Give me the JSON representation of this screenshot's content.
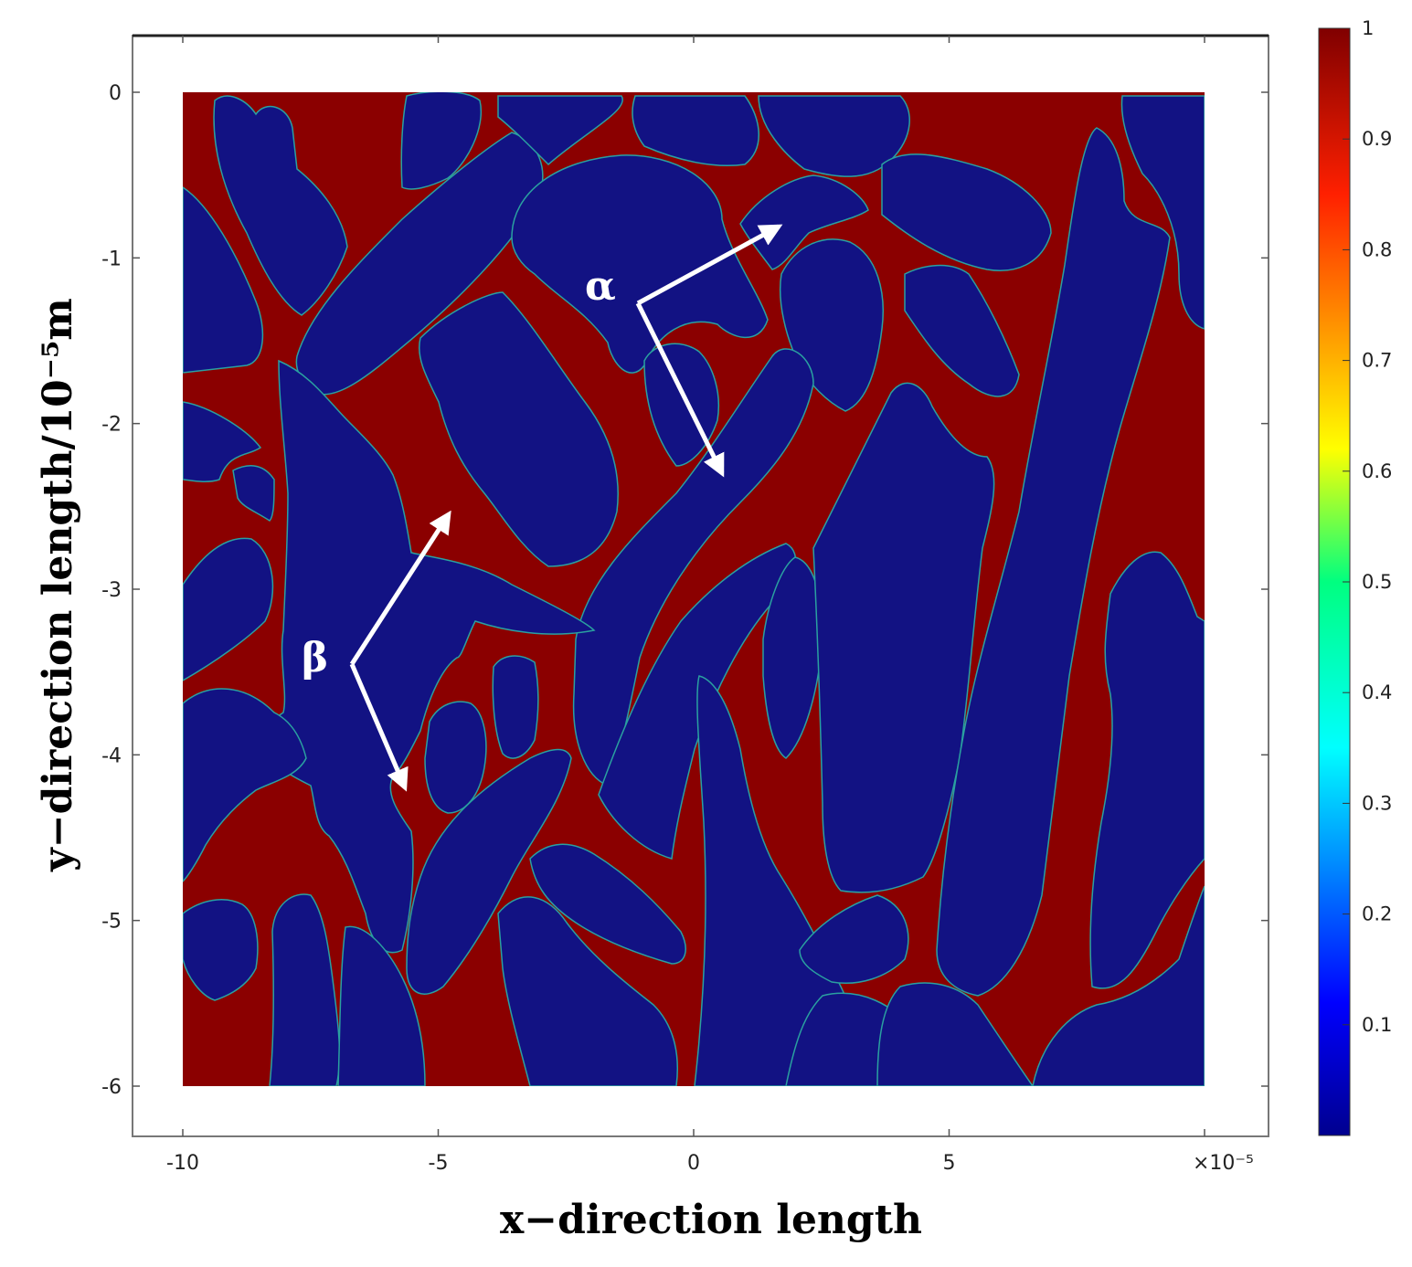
{
  "chart_data": {
    "type": "heatmap",
    "title": "",
    "xlabel": "x−direction length",
    "ylabel": "y−direction length/10⁻⁵m",
    "x_ticks": [
      "-10",
      "-5",
      "0",
      "5",
      "10"
    ],
    "x_multiplier": "×10⁻⁵",
    "y_ticks": [
      "0",
      "-1",
      "-2",
      "-3",
      "-4",
      "-5",
      "-6"
    ],
    "xlim": [
      -10,
      10
    ],
    "ylim": [
      -6,
      0
    ],
    "domain_x": [
      -10,
      10
    ],
    "domain_y": [
      -6,
      0
    ],
    "colorbar": {
      "range": [
        0,
        1
      ],
      "ticks": [
        "1",
        "0.9",
        "0.8",
        "0.7",
        "0.6",
        "0.5",
        "0.4",
        "0.3",
        "0.2",
        "0.1"
      ],
      "colormap": "jet"
    },
    "phase_value_red": 1,
    "phase_value_blue": 0,
    "annotations": [
      {
        "label": "α",
        "description": "alpha phase"
      },
      {
        "label": "β",
        "description": "beta phase"
      }
    ],
    "grid": false
  },
  "colors": {
    "matrix_red": "#8b0000",
    "grain_blue": "#121283",
    "arrow": "#ffffff",
    "frame": "#555555"
  }
}
